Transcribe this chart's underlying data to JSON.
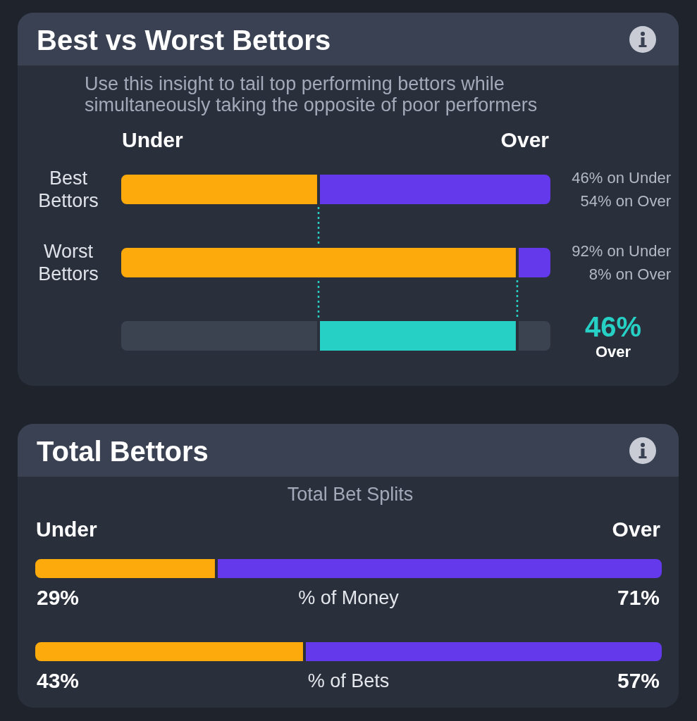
{
  "chart_data": [
    {
      "type": "bar",
      "orientation": "horizontal",
      "stacked": true,
      "title": "Best vs Worst Bettors",
      "subtitle": "Use this insight to tail top performing bettors while\nsimultaneously taking the opposite of poor performers",
      "categories": [
        "Best\nBettors",
        "Worst\nBettors",
        null
      ],
      "tick_labels": "y",
      "series": [
        {
          "name": "Under",
          "color": "#fdab0c",
          "values": [
            46,
            92,
            null
          ],
          "value_labels": [
            "46% on Under",
            "92% on Under",
            null
          ]
        },
        {
          "name": "Over",
          "color": "#6439ec",
          "values": [
            54,
            8,
            null
          ],
          "value_labels": [
            "54% on Over",
            "8% on Over",
            null
          ]
        },
        {
          "color": "#3b4250",
          "values": [
            null,
            null,
            46
          ]
        },
        {
          "color": "#26d0c4",
          "values": [
            null,
            null,
            46
          ],
          "value_labels": [
            null,
            null,
            "46%\nOver"
          ]
        },
        {
          "color": "#3b4250",
          "values": [
            null,
            null,
            8
          ]
        }
      ],
      "ref_lines": [
        {
          "axis": "x",
          "value": 46,
          "color": "#26d0c4",
          "line_style": "dotted"
        },
        {
          "axis": "x",
          "value": 92,
          "color": "#26d0c4",
          "line_style": "dotted"
        }
      ]
    },
    {
      "type": "bar",
      "orientation": "horizontal",
      "stacked": true,
      "title": "Total Bettors",
      "subtitle": "Total Bet Splits",
      "categories": [
        "% of Money",
        "% of Bets"
      ],
      "tick_labels": "y",
      "series": [
        {
          "name": "Under",
          "color": "#fdab0c",
          "values": [
            29,
            43
          ],
          "value_labels": [
            "29%",
            "43%"
          ]
        },
        {
          "name": "Over",
          "color": "#6439ec",
          "values": [
            71,
            57
          ],
          "value_labels": [
            "71%",
            "57%"
          ]
        }
      ]
    }
  ]
}
